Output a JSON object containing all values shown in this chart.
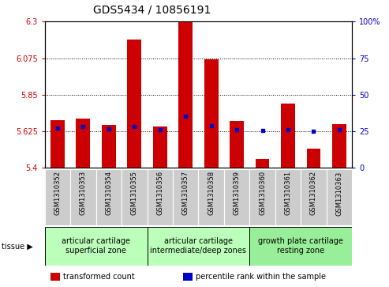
{
  "title": "GDS5434 / 10856191",
  "samples": [
    "GSM1310352",
    "GSM1310353",
    "GSM1310354",
    "GSM1310355",
    "GSM1310356",
    "GSM1310357",
    "GSM1310358",
    "GSM1310359",
    "GSM1310360",
    "GSM1310361",
    "GSM1310362",
    "GSM1310363"
  ],
  "bar_values": [
    5.695,
    5.705,
    5.665,
    6.19,
    5.655,
    6.295,
    6.07,
    5.69,
    5.455,
    5.795,
    5.52,
    5.67
  ],
  "bar_base": 5.4,
  "blue_dot_values": [
    5.645,
    5.655,
    5.64,
    5.655,
    5.635,
    5.72,
    5.66,
    5.635,
    5.63,
    5.635,
    5.625,
    5.635
  ],
  "ylim_left": [
    5.4,
    6.3
  ],
  "ylim_right": [
    0,
    100
  ],
  "yticks_left": [
    5.4,
    5.625,
    5.85,
    6.075,
    6.3
  ],
  "yticks_right": [
    0,
    25,
    50,
    75,
    100
  ],
  "hlines": [
    5.625,
    5.85,
    6.075
  ],
  "bar_color": "#cc0000",
  "dot_color": "#0000cc",
  "bar_width": 0.55,
  "groups": [
    {
      "label": "articular cartilage\nsuperficial zone",
      "start": 0,
      "end": 4,
      "color": "#bbffbb"
    },
    {
      "label": "articular cartilage\nintermediate/deep zones",
      "start": 4,
      "end": 8,
      "color": "#bbffbb"
    },
    {
      "label": "growth plate cartilage\nresting zone",
      "start": 8,
      "end": 12,
      "color": "#99ee99"
    }
  ],
  "tissue_label": "tissue",
  "legend_items": [
    {
      "color": "#cc0000",
      "label": "transformed count"
    },
    {
      "color": "#0000cc",
      "label": "percentile rank within the sample"
    }
  ],
  "left_tick_color": "#cc0000",
  "right_tick_color": "#0000cc",
  "title_fontsize": 10,
  "tick_fontsize": 7,
  "sample_fontsize": 6,
  "group_fontsize": 7,
  "legend_fontsize": 7,
  "cell_bg": "#cccccc",
  "plot_bg": "white",
  "fig_bg": "white"
}
